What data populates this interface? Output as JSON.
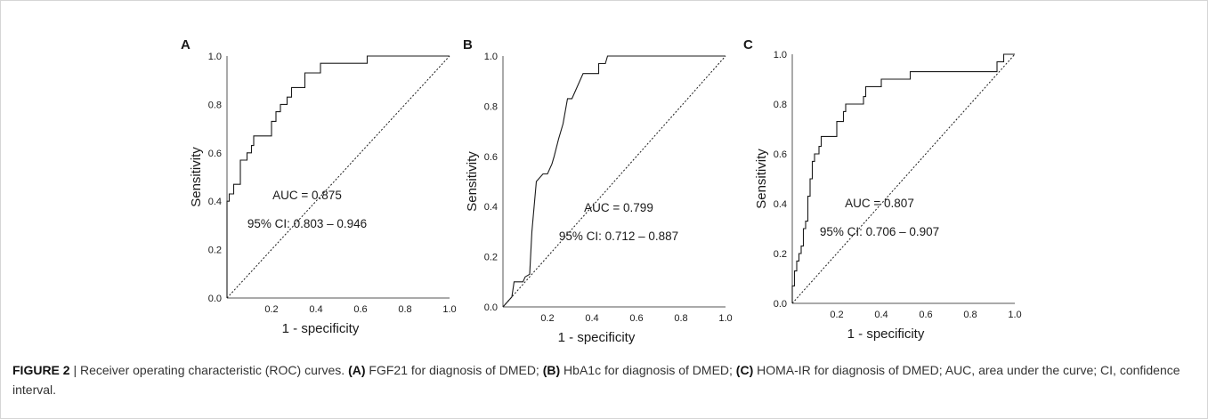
{
  "chart_data": [
    {
      "type": "line",
      "panel_label": "A",
      "xlabel": "1 - specificity",
      "ylabel": "Sensitivity",
      "x_ticks": [
        "",
        "0.2",
        "0.4",
        "0.6",
        "0.8",
        "1.0"
      ],
      "y_ticks": [
        "0.0",
        "0.2",
        "0.4",
        "0.6",
        "0.8",
        "1.0"
      ],
      "xlim": [
        0,
        1
      ],
      "ylim": [
        0,
        1
      ],
      "annotations": [
        "AUC = 0.875",
        "95% CI: 0.803 – 0.946"
      ],
      "series": [
        {
          "style": "solid",
          "points": [
            [
              0,
              0
            ],
            [
              0,
              0.4
            ],
            [
              0.01,
              0.4
            ],
            [
              0.01,
              0.43
            ],
            [
              0.03,
              0.43
            ],
            [
              0.03,
              0.47
            ],
            [
              0.06,
              0.47
            ],
            [
              0.06,
              0.57
            ],
            [
              0.09,
              0.57
            ],
            [
              0.09,
              0.6
            ],
            [
              0.11,
              0.6
            ],
            [
              0.11,
              0.63
            ],
            [
              0.12,
              0.63
            ],
            [
              0.12,
              0.67
            ],
            [
              0.2,
              0.67
            ],
            [
              0.2,
              0.73
            ],
            [
              0.22,
              0.73
            ],
            [
              0.22,
              0.77
            ],
            [
              0.24,
              0.77
            ],
            [
              0.24,
              0.8
            ],
            [
              0.27,
              0.8
            ],
            [
              0.27,
              0.83
            ],
            [
              0.29,
              0.83
            ],
            [
              0.29,
              0.87
            ],
            [
              0.35,
              0.87
            ],
            [
              0.35,
              0.93
            ],
            [
              0.42,
              0.93
            ],
            [
              0.42,
              0.97
            ],
            [
              0.63,
              0.97
            ],
            [
              0.63,
              1.0
            ],
            [
              1.0,
              1.0
            ]
          ]
        },
        {
          "style": "dotted",
          "points": [
            [
              0,
              0
            ],
            [
              1,
              1
            ]
          ]
        }
      ]
    },
    {
      "type": "line",
      "panel_label": "B",
      "xlabel": "1 - specificity",
      "ylabel": "Sensitivity",
      "x_ticks": [
        "",
        "0.2",
        "0.4",
        "0.6",
        "0.8",
        "1.0"
      ],
      "y_ticks": [
        "0.0",
        "0.2",
        "0.4",
        "0.6",
        "0.8",
        "1.0"
      ],
      "xlim": [
        0,
        1
      ],
      "ylim": [
        0,
        1
      ],
      "annotations": [
        "AUC = 0.799",
        "95% CI: 0.712 – 0.887"
      ],
      "series": [
        {
          "style": "solid",
          "points": [
            [
              0,
              0
            ],
            [
              0.02,
              0.02
            ],
            [
              0.04,
              0.04
            ],
            [
              0.05,
              0.1
            ],
            [
              0.09,
              0.1
            ],
            [
              0.1,
              0.12
            ],
            [
              0.12,
              0.13
            ],
            [
              0.13,
              0.3
            ],
            [
              0.15,
              0.5
            ],
            [
              0.18,
              0.53
            ],
            [
              0.2,
              0.53
            ],
            [
              0.22,
              0.57
            ],
            [
              0.23,
              0.6
            ],
            [
              0.25,
              0.67
            ],
            [
              0.27,
              0.73
            ],
            [
              0.29,
              0.83
            ],
            [
              0.31,
              0.83
            ],
            [
              0.36,
              0.93
            ],
            [
              0.43,
              0.93
            ],
            [
              0.43,
              0.97
            ],
            [
              0.46,
              0.97
            ],
            [
              0.47,
              1.0
            ],
            [
              1.0,
              1.0
            ]
          ]
        },
        {
          "style": "dotted",
          "points": [
            [
              0,
              0
            ],
            [
              1,
              1
            ]
          ]
        }
      ]
    },
    {
      "type": "line",
      "panel_label": "C",
      "xlabel": "1 - specificity",
      "ylabel": "Sensitivity",
      "x_ticks": [
        "",
        "0.2",
        "0.4",
        "0.6",
        "0.8",
        "1.0"
      ],
      "y_ticks": [
        "0.0",
        "0.2",
        "0.4",
        "0.6",
        "0.8",
        "1.0"
      ],
      "xlim": [
        0,
        1
      ],
      "ylim": [
        0,
        1
      ],
      "annotations": [
        "AUC = 0.807",
        "95% CI: 0.706 – 0.907"
      ],
      "series": [
        {
          "style": "solid",
          "points": [
            [
              0,
              0
            ],
            [
              0,
              0.07
            ],
            [
              0.01,
              0.07
            ],
            [
              0.01,
              0.13
            ],
            [
              0.02,
              0.13
            ],
            [
              0.02,
              0.17
            ],
            [
              0.03,
              0.17
            ],
            [
              0.03,
              0.2
            ],
            [
              0.04,
              0.2
            ],
            [
              0.04,
              0.23
            ],
            [
              0.05,
              0.23
            ],
            [
              0.05,
              0.3
            ],
            [
              0.06,
              0.3
            ],
            [
              0.06,
              0.33
            ],
            [
              0.07,
              0.33
            ],
            [
              0.07,
              0.43
            ],
            [
              0.08,
              0.43
            ],
            [
              0.08,
              0.5
            ],
            [
              0.09,
              0.5
            ],
            [
              0.09,
              0.57
            ],
            [
              0.1,
              0.57
            ],
            [
              0.1,
              0.6
            ],
            [
              0.12,
              0.6
            ],
            [
              0.12,
              0.63
            ],
            [
              0.13,
              0.63
            ],
            [
              0.13,
              0.67
            ],
            [
              0.2,
              0.67
            ],
            [
              0.2,
              0.73
            ],
            [
              0.23,
              0.73
            ],
            [
              0.23,
              0.77
            ],
            [
              0.24,
              0.77
            ],
            [
              0.24,
              0.8
            ],
            [
              0.32,
              0.8
            ],
            [
              0.32,
              0.83
            ],
            [
              0.33,
              0.83
            ],
            [
              0.33,
              0.87
            ],
            [
              0.4,
              0.87
            ],
            [
              0.4,
              0.9
            ],
            [
              0.53,
              0.9
            ],
            [
              0.53,
              0.93
            ],
            [
              0.92,
              0.93
            ],
            [
              0.92,
              0.97
            ],
            [
              0.95,
              0.97
            ],
            [
              0.95,
              1.0
            ],
            [
              1.0,
              1.0
            ]
          ]
        },
        {
          "style": "dotted",
          "points": [
            [
              0,
              0
            ],
            [
              1,
              1
            ]
          ]
        }
      ]
    }
  ],
  "caption": {
    "lead": "FIGURE 2",
    "sep": " | Receiver operating characteristic (ROC) curves. ",
    "a_label": "(A)",
    "a_text": " FGF21 for diagnosis of DMED; ",
    "b_label": "(B)",
    "b_text": " HbA1c for diagnosis of DMED; ",
    "c_label": "(C)",
    "c_text": " HOMA-IR for diagnosis of DMED; AUC, area under the curve; CI, confidence interval."
  },
  "colors": {
    "line": "#1a1a1a",
    "axis": "#555555"
  }
}
